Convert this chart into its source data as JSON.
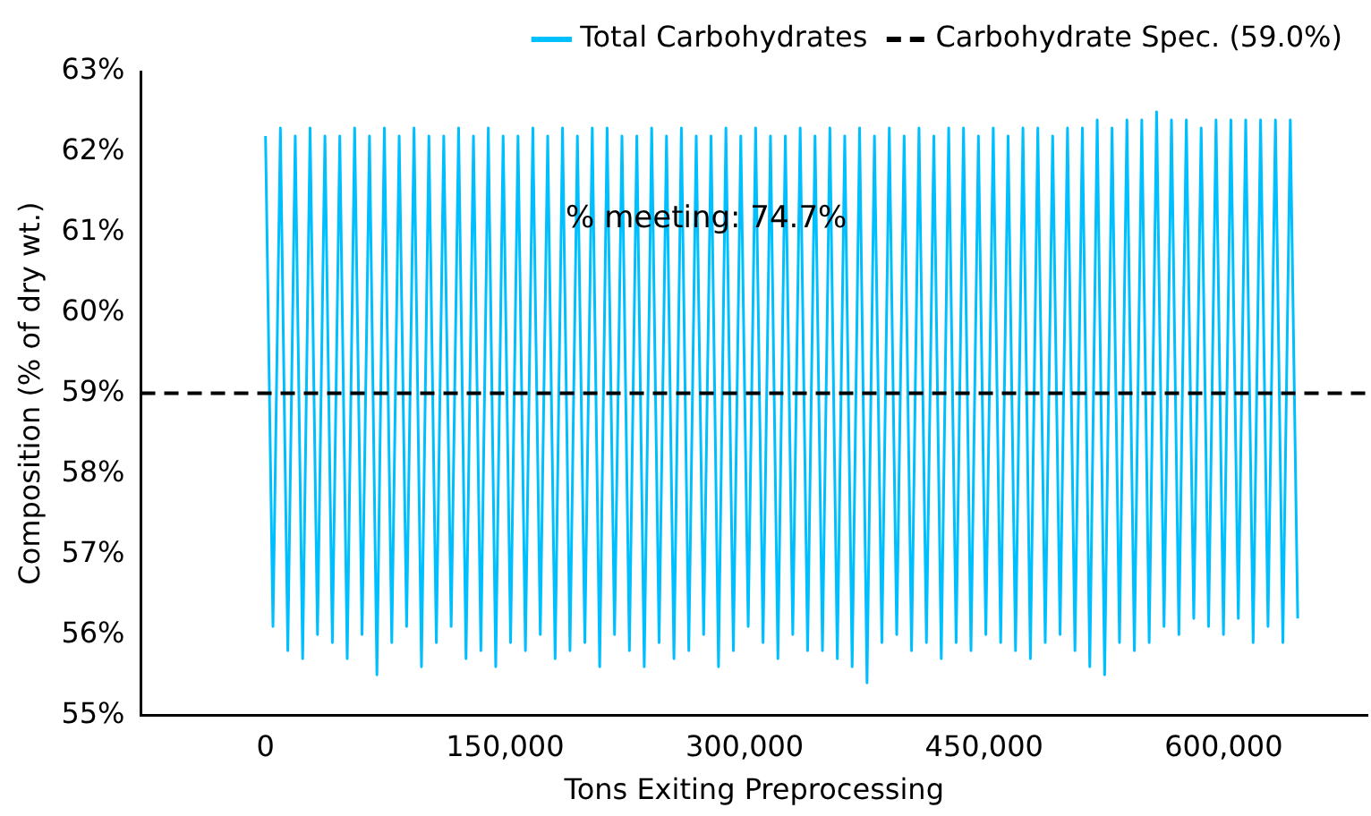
{
  "chart_data": {
    "type": "line",
    "xlabel": "Tons Exiting Preprocessing",
    "ylabel": "Composition (% of dry wt.)",
    "x": [
      0,
      4650,
      9300,
      13950,
      18600,
      23250,
      27900,
      32550,
      37200,
      41850,
      46500,
      51150,
      55800,
      60450,
      65100,
      69750,
      74400,
      79050,
      83700,
      88350,
      93000,
      97650,
      102300,
      106950,
      111600,
      116250,
      120900,
      125550,
      130200,
      134850,
      139500,
      144150,
      148800,
      153450,
      158100,
      162750,
      167400,
      172050,
      176700,
      181350,
      186000,
      190650,
      195300,
      199950,
      204600,
      209250,
      213900,
      218550,
      223200,
      227850,
      232500,
      237150,
      241800,
      246450,
      251100,
      255750,
      260400,
      265050,
      269700,
      274350,
      279000,
      283650,
      288300,
      292950,
      297600,
      302250,
      306900,
      311550,
      316200,
      320850,
      325500,
      330150,
      334800,
      339450,
      344100,
      348750,
      353400,
      358050,
      362700,
      367350,
      372000,
      376650,
      381300,
      385950,
      390600,
      395250,
      399900,
      404550,
      409200,
      413850,
      418500,
      423150,
      427800,
      432450,
      437100,
      441750,
      446400,
      451050,
      455700,
      460350,
      465000,
      469650,
      474300,
      478950,
      483600,
      488250,
      492900,
      497550,
      502200,
      506850,
      511500,
      516150,
      520800,
      525450,
      530100,
      534750,
      539400,
      544050,
      548700,
      553350,
      558000,
      562650,
      567300,
      571950,
      576600,
      581250,
      585900,
      590550,
      595200,
      599850,
      604500,
      609150,
      613800,
      618450,
      623100,
      627750,
      632400,
      637050,
      641700,
      646350
    ],
    "series": [
      {
        "name": "Total Carbohydrates",
        "color": "#00bfff",
        "values": [
          62.2,
          56.1,
          62.3,
          55.8,
          62.2,
          55.7,
          62.3,
          56.0,
          62.2,
          55.9,
          62.2,
          55.7,
          62.3,
          56.0,
          62.2,
          55.5,
          62.3,
          55.9,
          62.2,
          56.1,
          62.3,
          55.6,
          62.2,
          55.9,
          62.2,
          56.1,
          62.3,
          55.7,
          62.2,
          55.8,
          62.3,
          55.6,
          62.2,
          55.9,
          62.2,
          55.8,
          62.3,
          56.0,
          62.2,
          55.7,
          62.3,
          55.8,
          62.2,
          55.9,
          62.3,
          55.6,
          62.3,
          56.0,
          62.2,
          55.8,
          62.2,
          55.6,
          62.3,
          55.9,
          62.2,
          55.7,
          62.3,
          55.8,
          62.2,
          56.0,
          62.2,
          55.6,
          62.3,
          55.8,
          62.2,
          56.1,
          62.3,
          55.9,
          62.2,
          55.7,
          62.2,
          56.0,
          62.3,
          55.8,
          62.2,
          55.8,
          62.3,
          55.7,
          62.2,
          55.6,
          62.3,
          55.4,
          62.2,
          55.9,
          62.3,
          56.0,
          62.2,
          55.8,
          62.3,
          55.9,
          62.2,
          55.7,
          62.3,
          55.9,
          62.3,
          55.8,
          62.2,
          56.0,
          62.3,
          55.9,
          62.2,
          55.8,
          62.3,
          55.7,
          62.3,
          55.9,
          62.2,
          56.0,
          62.3,
          55.8,
          62.3,
          55.6,
          62.4,
          55.5,
          62.3,
          55.9,
          62.4,
          55.8,
          62.4,
          55.9,
          62.5,
          56.1,
          62.4,
          56.0,
          62.4,
          56.2,
          62.3,
          56.1,
          62.4,
          56.0,
          62.4,
          56.2,
          62.4,
          55.9,
          62.4,
          56.1,
          62.4,
          55.9,
          62.4,
          56.2
        ]
      }
    ],
    "ref_lines": [
      {
        "axis": "y",
        "value": 59,
        "label": "Carbohydrate Spec. (59.0%)",
        "color": "#000000",
        "line_style": "dashed"
      }
    ],
    "annotations": [
      "% meeting: 74.7%"
    ],
    "xlim": [
      -78000,
      690000
    ],
    "xticks": [
      {
        "value": 0,
        "label": "0"
      },
      {
        "value": 150000,
        "label": "150,000"
      },
      {
        "value": 300000,
        "label": "300,000"
      },
      {
        "value": 450000,
        "label": "450,000"
      },
      {
        "value": 600000,
        "label": "600,000"
      }
    ],
    "ylim": [
      55,
      63
    ],
    "yticks": [
      {
        "value": 55,
        "label": "55%"
      },
      {
        "value": 56,
        "label": "56%"
      },
      {
        "value": 57,
        "label": "57%"
      },
      {
        "value": 58,
        "label": "58%"
      },
      {
        "value": 59,
        "label": "59%"
      },
      {
        "value": 60,
        "label": "60%"
      },
      {
        "value": 61,
        "label": "61%"
      },
      {
        "value": 62,
        "label": "62%"
      },
      {
        "value": 63,
        "label": "63%"
      }
    ],
    "grid": false,
    "legend": "top right",
    "marker": "none",
    "line_style": "solid"
  }
}
